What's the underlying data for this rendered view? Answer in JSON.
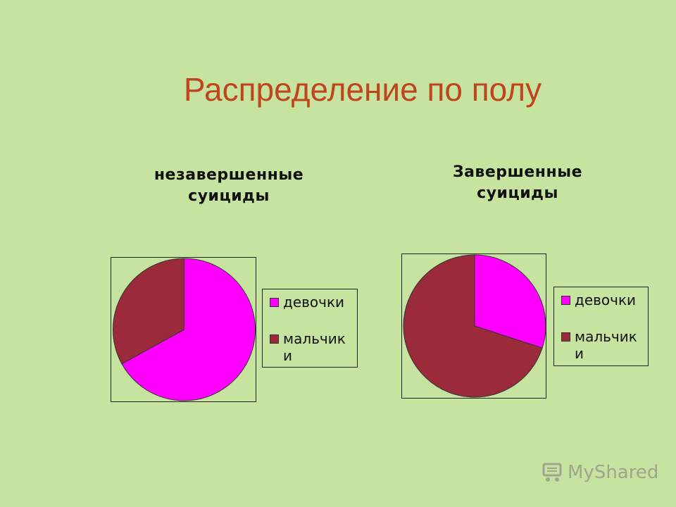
{
  "slide": {
    "title": "Распределение по полу"
  },
  "watermark": {
    "text": "MyShared",
    "icon": "cart-icon"
  },
  "colors": {
    "background": "#c6e3a0",
    "title": "#c0451e",
    "girls": "#ff00ff",
    "boys": "#9b2a3a"
  },
  "chart_data": [
    {
      "type": "pie",
      "title_lines": [
        "незавершенные",
        "суициды"
      ],
      "categories": [
        "девочки",
        "мальчики"
      ],
      "values": [
        67,
        33
      ],
      "colors": [
        "#ff00ff",
        "#9b2a3a"
      ],
      "legend": {
        "position": "right",
        "entries": [
          "девочки",
          "мальчик и"
        ]
      }
    },
    {
      "type": "pie",
      "title_lines": [
        "Завершенные",
        "суициды"
      ],
      "categories": [
        "девочки",
        "мальчики"
      ],
      "values": [
        30,
        70
      ],
      "colors": [
        "#ff00ff",
        "#9b2a3a"
      ],
      "legend": {
        "position": "right",
        "entries": [
          "девочки",
          "мальчик и"
        ]
      }
    }
  ]
}
